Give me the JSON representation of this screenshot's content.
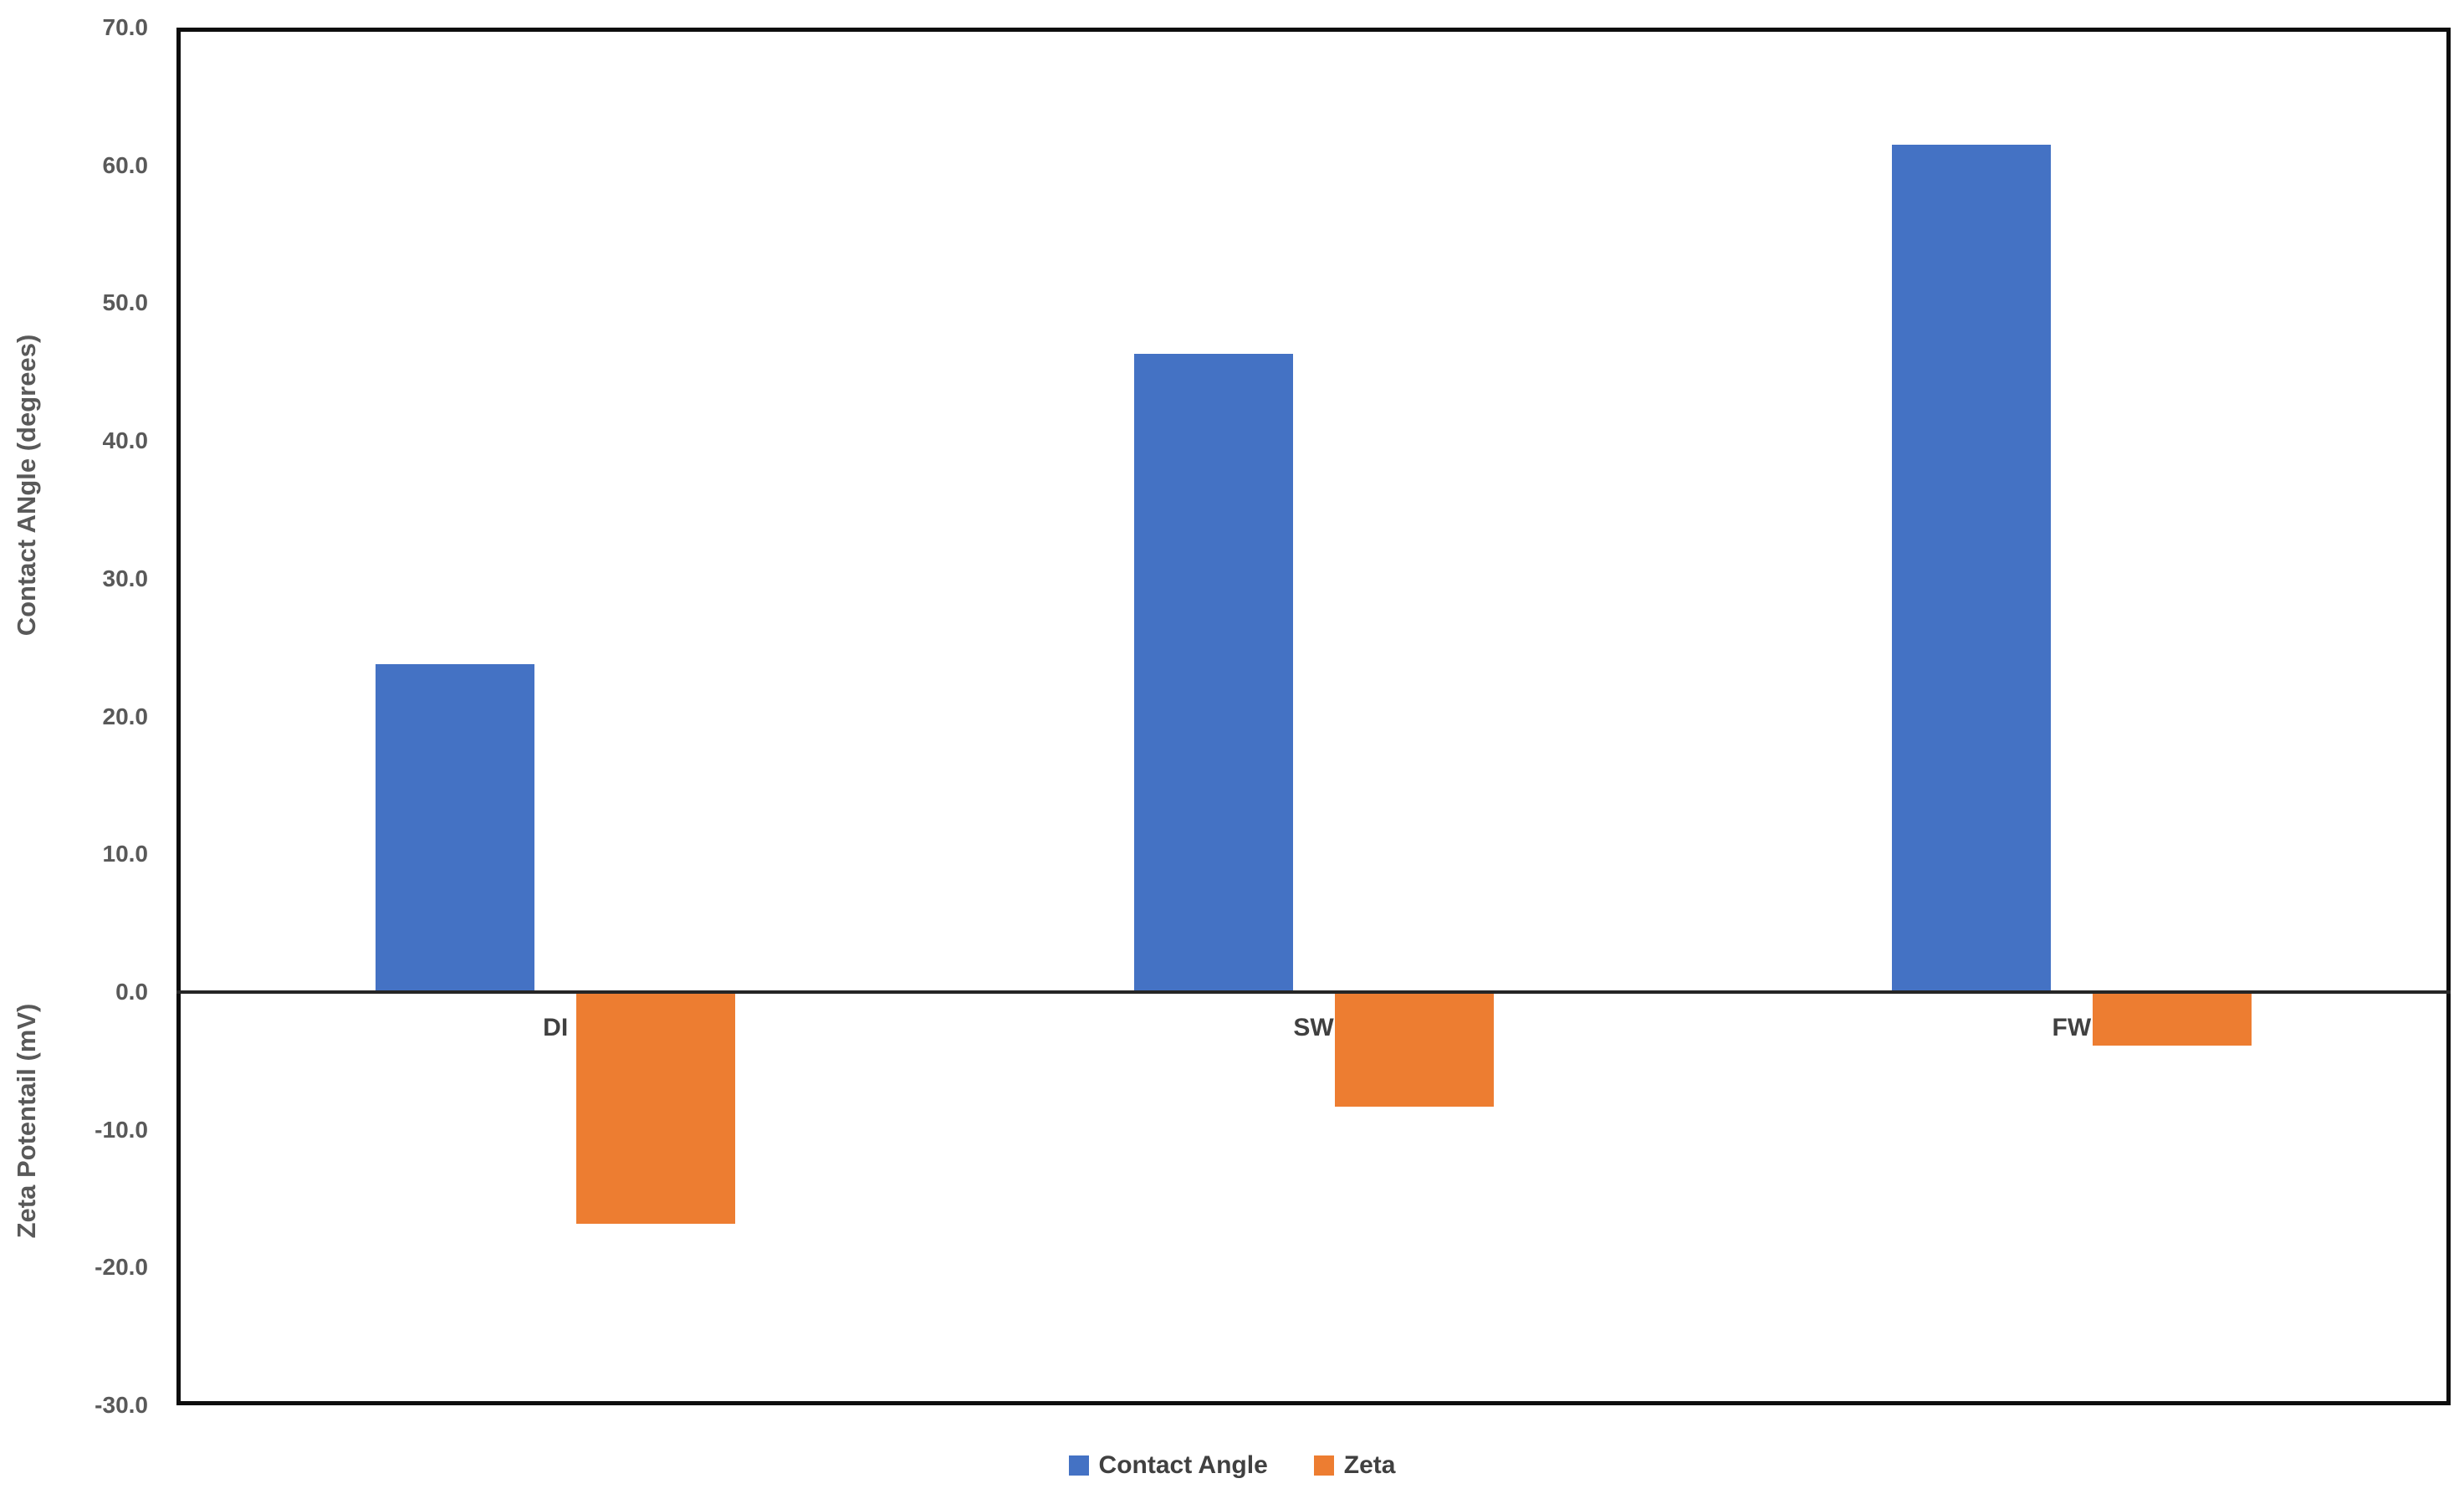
{
  "chart_data": {
    "type": "bar",
    "categories": [
      "DI",
      "SW",
      "FW"
    ],
    "series": [
      {
        "name": "Contact Angle",
        "color": "#4472C4",
        "values": [
          23.8,
          46.3,
          61.5
        ]
      },
      {
        "name": "Zeta",
        "color": "#ED7D31",
        "values": [
          -16.8,
          -8.3,
          -3.9
        ]
      }
    ],
    "y_axis": {
      "max": 70,
      "min": -30,
      "tick_step": 10,
      "ticks": [
        "70.0",
        "60.0",
        "50.0",
        "40.0",
        "30.0",
        "20.0",
        "10.0",
        "0.0",
        "-10.0",
        "-20.0",
        "-30.0"
      ],
      "label_positive": "Contact ANgle (degrees)",
      "label_negative": "Zeta Potentail (mV)"
    },
    "grid": "off",
    "legend_position": "bottom",
    "legend": [
      {
        "label": "Contact Angle",
        "color": "#4472C4"
      },
      {
        "label": "Zeta",
        "color": "#ED7D31"
      }
    ]
  }
}
